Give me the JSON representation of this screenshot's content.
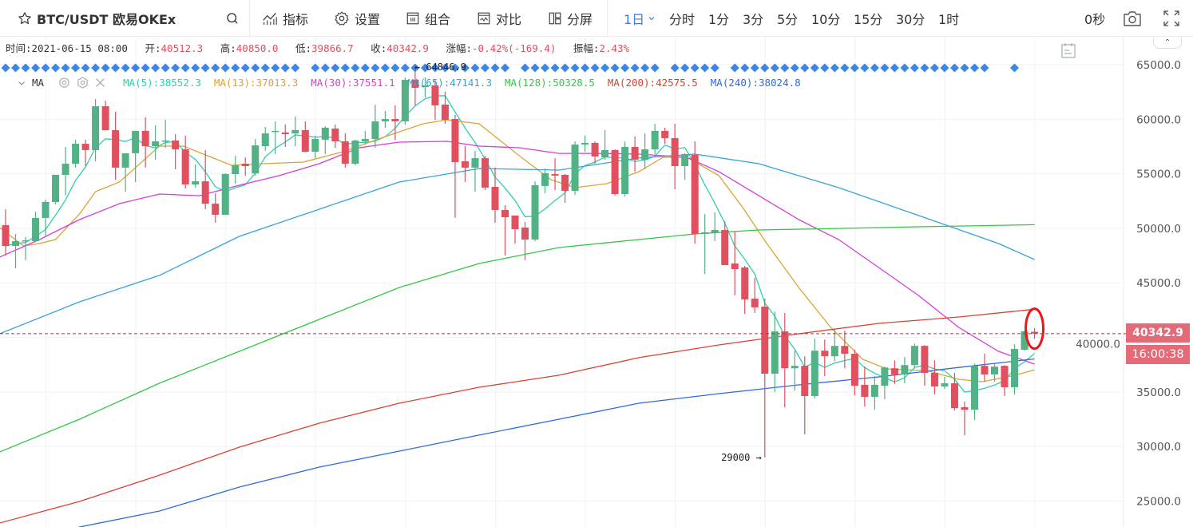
{
  "toolbar": {
    "symbol": "BTC/USDT 欧易OKEx",
    "buttons": {
      "indicators": "指标",
      "settings": "设置",
      "combine": "组合",
      "compare": "对比",
      "split": "分屏"
    },
    "intervals": [
      "1日",
      "分时",
      "1分",
      "3分",
      "5分",
      "10分",
      "15分",
      "30分",
      "1时"
    ],
    "active_interval": "1日",
    "countdown": "0秒"
  },
  "info": {
    "time_label": "时间:",
    "time": "2021-06-15 08:00",
    "open_label": "开:",
    "open": "40512.3",
    "high_label": "高:",
    "high": "40850.0",
    "low_label": "低:",
    "low": "39866.7",
    "close_label": "收:",
    "close": "40342.9",
    "change_label": "涨幅:",
    "change": "-0.42%(-169.4)",
    "amplitude_label": "振幅:",
    "amplitude": "2.43%"
  },
  "ma_legend": {
    "name": "MA",
    "items": [
      {
        "label": "MA(5):38552.3",
        "color": "#2fcfae"
      },
      {
        "label": "MA(13):37013.3",
        "color": "#d9a534"
      },
      {
        "label": "MA(30):37551.1",
        "color": "#d43fd6"
      },
      {
        "label": "MA(65):47141.3",
        "color": "#37a2d8"
      },
      {
        "label": "MA(128):50328.5",
        "color": "#36c645"
      },
      {
        "label": "MA(200):42575.5",
        "color": "#d8432f"
      },
      {
        "label": "MA(240):38024.8",
        "color": "#2f6bd8"
      }
    ]
  },
  "price_label": "40342.9",
  "countdown_label": "16:00:38",
  "colors": {
    "up": "#52b286",
    "down": "#e0505e",
    "accent": "#3a7de0",
    "marker": "#3d86e8"
  },
  "chart_data": {
    "type": "candlestick",
    "ylim": [
      23000,
      67500
    ],
    "y_ticks": [
      "65000.0",
      "60000.0",
      "55000.0",
      "50000.0",
      "45000.0",
      "40000.0",
      "35000.0",
      "30000.0",
      "25000.0"
    ],
    "y_tick_values": [
      65000,
      60000,
      55000,
      50000,
      45000,
      40000,
      35000,
      30000,
      25000
    ],
    "last_price": 40342.9,
    "annotations": [
      {
        "text": "← 64846.9",
        "index": 41,
        "price": 64846.9
      },
      {
        "text": "29000 →",
        "index": 76,
        "price": 29000
      }
    ],
    "marker_ranges": [
      [
        0,
        29
      ],
      [
        31,
        50
      ],
      [
        52,
        65
      ],
      [
        67,
        71
      ],
      [
        73,
        98
      ],
      [
        101,
        101
      ]
    ],
    "highlight_index": 103,
    "candles_ohlc": [
      [
        50290,
        51750,
        47500,
        48380
      ],
      [
        48380,
        49480,
        46330,
        48820
      ],
      [
        48820,
        49200,
        47070,
        48900
      ],
      [
        48820,
        51530,
        48820,
        50950
      ],
      [
        50950,
        52630,
        49260,
        52410
      ],
      [
        52410,
        54900,
        52200,
        54900
      ],
      [
        54900,
        57460,
        53000,
        55920
      ],
      [
        55920,
        58120,
        55560,
        57750
      ],
      [
        57750,
        58120,
        55700,
        57170
      ],
      [
        57170,
        61850,
        56140,
        61190
      ],
      [
        61190,
        61700,
        59000,
        59000
      ],
      [
        59000,
        60680,
        54460,
        55560
      ],
      [
        55560,
        56880,
        53360,
        56880
      ],
      [
        56880,
        58930,
        54240,
        58930
      ],
      [
        58930,
        60170,
        55560,
        57530
      ],
      [
        57530,
        59440,
        56290,
        57970
      ],
      [
        57970,
        59950,
        57390,
        58050
      ],
      [
        58050,
        58630,
        55410,
        57240
      ],
      [
        57240,
        58490,
        53650,
        54020
      ],
      [
        54020,
        55850,
        53720,
        54310
      ],
      [
        54310,
        57170,
        51750,
        52260
      ],
      [
        52260,
        53210,
        50510,
        51240
      ],
      [
        51240,
        55040,
        51240,
        54970
      ],
      [
        54970,
        56650,
        54090,
        55780
      ],
      [
        55920,
        56500,
        54830,
        55700
      ],
      [
        55040,
        58190,
        54830,
        57600
      ],
      [
        57530,
        59290,
        57100,
        58700
      ],
      [
        58850,
        59800,
        56800,
        58930
      ],
      [
        58780,
        59510,
        57460,
        58630
      ],
      [
        58700,
        60240,
        57530,
        59000
      ],
      [
        59000,
        59800,
        56950,
        57020
      ],
      [
        57020,
        58490,
        56430,
        58190
      ],
      [
        58120,
        59360,
        56800,
        59220
      ],
      [
        59140,
        59510,
        57390,
        57970
      ],
      [
        57970,
        58710,
        55560,
        55920
      ],
      [
        55920,
        58120,
        55780,
        58050
      ],
      [
        57970,
        58930,
        57680,
        58190
      ],
      [
        58190,
        61340,
        57390,
        59800
      ],
      [
        59800,
        60750,
        59220,
        60020
      ],
      [
        60020,
        61270,
        58120,
        59800
      ],
      [
        59800,
        63830,
        59500,
        63610
      ],
      [
        63610,
        64846.9,
        61270,
        62880
      ],
      [
        62950,
        63830,
        62000,
        63100
      ],
      [
        63100,
        63610,
        59950,
        61270
      ],
      [
        61340,
        62510,
        59580,
        59950
      ],
      [
        60020,
        60390,
        50950,
        56070
      ],
      [
        56140,
        57530,
        54240,
        55560
      ],
      [
        55560,
        57090,
        53360,
        56430
      ],
      [
        56430,
        56650,
        53500,
        53730
      ],
      [
        53800,
        55560,
        50510,
        51680
      ],
      [
        51680,
        52120,
        47500,
        51020
      ],
      [
        51170,
        51170,
        48600,
        49920
      ],
      [
        50070,
        50580,
        47070,
        48970
      ],
      [
        48970,
        54310,
        48820,
        53950
      ],
      [
        53880,
        55480,
        53210,
        55050
      ],
      [
        54970,
        56430,
        53500,
        54830
      ],
      [
        54900,
        54970,
        52330,
        53430
      ],
      [
        53430,
        57970,
        53070,
        57680
      ],
      [
        57680,
        58490,
        57020,
        57830
      ],
      [
        57830,
        57970,
        55920,
        56580
      ],
      [
        56510,
        59000,
        56290,
        57170
      ],
      [
        57170,
        57240,
        53000,
        53140
      ],
      [
        53140,
        57970,
        52920,
        57460
      ],
      [
        57460,
        58410,
        55190,
        56290
      ],
      [
        56290,
        58700,
        55410,
        57240
      ],
      [
        57240,
        59580,
        56800,
        58930
      ],
      [
        58930,
        59220,
        57750,
        58270
      ],
      [
        58270,
        59580,
        53580,
        55700
      ],
      [
        55700,
        56880,
        54460,
        56800
      ],
      [
        56730,
        57970,
        48600,
        49480
      ],
      [
        49480,
        51310,
        45820,
        49630
      ],
      [
        49630,
        51460,
        48820,
        49850
      ],
      [
        49850,
        50650,
        46630,
        46630
      ],
      [
        46770,
        49700,
        43850,
        46260
      ],
      [
        46410,
        46550,
        42160,
        43480
      ],
      [
        43550,
        45460,
        42230,
        42750
      ],
      [
        42820,
        43550,
        29000,
        36670
      ],
      [
        36670,
        42380,
        34980,
        40550
      ],
      [
        40550,
        42230,
        33580,
        37170
      ],
      [
        37170,
        38780,
        35130,
        37390
      ],
      [
        37390,
        38270,
        31100,
        34620
      ],
      [
        34620,
        39880,
        34400,
        38780
      ],
      [
        38780,
        39800,
        36450,
        38270
      ],
      [
        38270,
        40700,
        37830,
        39220
      ],
      [
        39220,
        40620,
        37170,
        38500
      ],
      [
        38500,
        38860,
        34700,
        35570
      ],
      [
        35650,
        37320,
        33660,
        34550
      ],
      [
        34550,
        36450,
        33370,
        35650
      ],
      [
        35570,
        37320,
        34330,
        37240
      ],
      [
        37170,
        37900,
        35720,
        36600
      ],
      [
        36600,
        38200,
        35790,
        37460
      ],
      [
        37460,
        39440,
        37170,
        39220
      ],
      [
        39220,
        39300,
        35570,
        36740
      ],
      [
        36740,
        37900,
        34770,
        35500
      ],
      [
        35500,
        36380,
        35280,
        35790
      ],
      [
        35790,
        36740,
        33290,
        33520
      ],
      [
        33600,
        34110,
        31030,
        33370
      ],
      [
        33370,
        37610,
        32420,
        37390
      ],
      [
        37390,
        38500,
        35940,
        36600
      ],
      [
        36600,
        37610,
        35940,
        37320
      ],
      [
        37390,
        37460,
        34620,
        35430
      ],
      [
        35430,
        39370,
        34770,
        38940
      ],
      [
        38860,
        40620,
        38780,
        40550
      ],
      [
        40512.3,
        40850,
        39866.7,
        40342.9
      ]
    ],
    "ma_series": [
      {
        "name": "MA5",
        "period": 5,
        "color": "#2fcfae",
        "computed": true
      },
      {
        "name": "MA13",
        "color": "#d9a534",
        "points": [
          [
            -0.6,
            50070
          ],
          [
            1.8,
            48380
          ],
          [
            3.4,
            48600
          ],
          [
            5,
            48970
          ],
          [
            7.4,
            51310
          ],
          [
            9,
            53360
          ],
          [
            11.4,
            54240
          ],
          [
            15.4,
            57530
          ],
          [
            17.8,
            57530
          ],
          [
            20.2,
            56660
          ],
          [
            22.6,
            55780
          ],
          [
            25.8,
            55920
          ],
          [
            29.8,
            56070
          ],
          [
            33.8,
            57020
          ],
          [
            37.8,
            58340
          ],
          [
            41.8,
            59580
          ],
          [
            44.2,
            59950
          ],
          [
            47.4,
            59580
          ],
          [
            51.4,
            56660
          ],
          [
            54.6,
            54460
          ],
          [
            57,
            53730
          ],
          [
            60.2,
            54090
          ],
          [
            63.4,
            55190
          ],
          [
            65.8,
            56510
          ],
          [
            68.2,
            56510
          ],
          [
            71.4,
            54830
          ],
          [
            73.8,
            51900
          ],
          [
            76.2,
            48600
          ],
          [
            79.4,
            44570
          ],
          [
            82.6,
            40920
          ],
          [
            85.8,
            37990
          ],
          [
            88.2,
            37110
          ],
          [
            92.2,
            36960
          ],
          [
            95.4,
            36160
          ],
          [
            97.8,
            35940
          ],
          [
            101,
            36520
          ],
          [
            103,
            37013.3
          ]
        ]
      },
      {
        "name": "MA30",
        "color": "#d43fd6",
        "points": [
          [
            -0.6,
            47360
          ],
          [
            3.4,
            48970
          ],
          [
            7.4,
            50800
          ],
          [
            11.4,
            52260
          ],
          [
            15.4,
            53140
          ],
          [
            19.4,
            52990
          ],
          [
            23.4,
            53950
          ],
          [
            27.4,
            54830
          ],
          [
            31.4,
            55920
          ],
          [
            35.4,
            57390
          ],
          [
            39.4,
            57900
          ],
          [
            44.2,
            57970
          ],
          [
            47.4,
            57530
          ],
          [
            51.4,
            57390
          ],
          [
            55.4,
            56870
          ],
          [
            59.4,
            56870
          ],
          [
            63.4,
            56800
          ],
          [
            68.2,
            56510
          ],
          [
            71.4,
            55190
          ],
          [
            75.4,
            52990
          ],
          [
            79.4,
            50800
          ],
          [
            83.4,
            48970
          ],
          [
            87.4,
            46410
          ],
          [
            91.4,
            43840
          ],
          [
            95.4,
            40920
          ],
          [
            99.4,
            38720
          ],
          [
            103,
            37551.1
          ]
        ]
      },
      {
        "name": "MA65",
        "color": "#37a2d8",
        "points": [
          [
            -0.6,
            40330
          ],
          [
            7.4,
            43260
          ],
          [
            15.4,
            45680
          ],
          [
            23.4,
            49260
          ],
          [
            31.4,
            51750
          ],
          [
            39.4,
            54240
          ],
          [
            47.4,
            55480
          ],
          [
            55.4,
            55340
          ],
          [
            63.4,
            56440
          ],
          [
            69,
            56800
          ],
          [
            75.4,
            55920
          ],
          [
            83.4,
            53730
          ],
          [
            91.4,
            51170
          ],
          [
            99.4,
            48600
          ],
          [
            103,
            47141.3
          ]
        ]
      },
      {
        "name": "MA128",
        "color": "#36c645",
        "points": [
          [
            -0.6,
            29500
          ],
          [
            7.4,
            32500
          ],
          [
            15.4,
            35800
          ],
          [
            23.4,
            38720
          ],
          [
            31.4,
            41650
          ],
          [
            39.4,
            44570
          ],
          [
            47.4,
            46770
          ],
          [
            55.4,
            48240
          ],
          [
            63.4,
            48970
          ],
          [
            69,
            49480
          ],
          [
            75.4,
            49850
          ],
          [
            83.4,
            49990
          ],
          [
            91.4,
            50140
          ],
          [
            103,
            50328.5
          ]
        ]
      },
      {
        "name": "MA200",
        "color": "#d8432f",
        "points": [
          [
            -0.6,
            22980
          ],
          [
            7.4,
            24960
          ],
          [
            15.4,
            27370
          ],
          [
            23.4,
            29940
          ],
          [
            31.4,
            32130
          ],
          [
            39.4,
            33960
          ],
          [
            47.4,
            35430
          ],
          [
            55.4,
            36530
          ],
          [
            63.4,
            38140
          ],
          [
            71.4,
            39310
          ],
          [
            79.4,
            40330
          ],
          [
            87.4,
            41280
          ],
          [
            95.4,
            41870
          ],
          [
            103,
            42575.5
          ]
        ]
      },
      {
        "name": "MA240",
        "color": "#2f6bd8",
        "points": [
          [
            6.5,
            22300
          ],
          [
            7.4,
            22620
          ],
          [
            15.4,
            24080
          ],
          [
            23.4,
            26280
          ],
          [
            31.4,
            28110
          ],
          [
            39.4,
            29570
          ],
          [
            47.4,
            31040
          ],
          [
            55.4,
            32500
          ],
          [
            63.4,
            33960
          ],
          [
            71.4,
            34840
          ],
          [
            79.4,
            35650
          ],
          [
            87.4,
            36380
          ],
          [
            95.4,
            37240
          ],
          [
            103,
            38024.8
          ]
        ]
      }
    ]
  }
}
